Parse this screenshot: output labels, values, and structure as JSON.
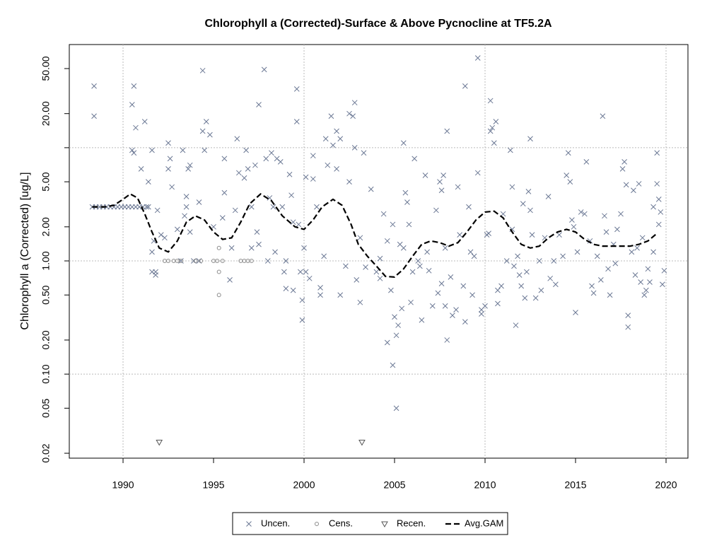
{
  "chart_data": {
    "type": "scatter",
    "title": "Chlorophyll a (Corrected)-Surface & Above Pycnocline at TF5.2A",
    "ylabel": "Chlorophyll a (Corrected) [ug/L]",
    "log_y": true,
    "xlim": [
      1987.03,
      2021.21
    ],
    "ylim": [
      0.0181,
      81.5
    ],
    "xticks": [
      1990,
      1995,
      2000,
      2005,
      2010,
      2015,
      2020
    ],
    "yticks": [
      {
        "value": 0.02,
        "label": "0.02"
      },
      {
        "value": 0.05,
        "label": "0.05"
      },
      {
        "value": 0.1,
        "label": "0.10"
      },
      {
        "value": 0.2,
        "label": "0.20"
      },
      {
        "value": 0.5,
        "label": "0.50"
      },
      {
        "value": 1,
        "label": "1.00"
      },
      {
        "value": 2,
        "label": "2.00"
      },
      {
        "value": 5,
        "label": "5.00"
      },
      {
        "value": 10,
        "label": null
      },
      {
        "value": 20,
        "label": "20.00"
      },
      {
        "value": 50,
        "label": "50.00"
      }
    ],
    "grid": true,
    "grid_x": [
      1990,
      2000,
      2010,
      2020
    ],
    "grid_y": [
      0.1,
      1,
      10
    ],
    "legend": "bottom",
    "series": [
      {
        "name": "Uncen.",
        "type": "scatter",
        "marker": "x",
        "color": "#6b7894",
        "x": [
          1988.4,
          1988.4,
          1988.3,
          1988.5,
          1988.7,
          1988.9,
          1989.1,
          1989.3,
          1989.5,
          1989.7,
          1989.9,
          1990.1,
          1990.3,
          1990.5,
          1990.7,
          1990.9,
          1991.1,
          1991.3,
          1991.4,
          1990.5,
          1990.6,
          1990.5,
          1990.6,
          1990.7,
          1991.2,
          1991.0,
          1991.4,
          1991.6,
          1991.6,
          1991.6,
          1991.8,
          1991.8,
          1991.7,
          1991.9,
          1992.1,
          1992.3,
          1992.5,
          1992.5,
          1992.6,
          1992.7,
          1993.0,
          1993.2,
          1993.4,
          1993.5,
          1993.5,
          1993.3,
          1993.6,
          1993.7,
          1993.7,
          1993.9,
          1994.2,
          1994.2,
          1994.4,
          1994.4,
          1994.5,
          1994.6,
          1994.8,
          1995.0,
          1995.5,
          1995.6,
          1995.6,
          1995.9,
          1996.0,
          1996.2,
          1996.3,
          1996.4,
          1996.7,
          1996.8,
          1996.9,
          1997.1,
          1997.1,
          1997.3,
          1997.4,
          1997.5,
          1997.5,
          1997.8,
          1997.9,
          1998.0,
          1998.1,
          1998.2,
          1998.3,
          1998.4,
          1998.5,
          1998.7,
          1998.8,
          1998.9,
          1999.0,
          1999.0,
          1999.2,
          1999.3,
          1999.4,
          1999.4,
          1999.6,
          1999.6,
          1999.7,
          1999.8,
          1999.9,
          1999.9,
          2000.0,
          2000.1,
          2000.1,
          2000.3,
          2000.5,
          2000.5,
          2000.7,
          2000.9,
          2000.9,
          2001.1,
          2001.2,
          2001.3,
          2001.5,
          2001.6,
          2001.8,
          2001.8,
          2002.0,
          2002.0,
          2002.3,
          2002.5,
          2002.5,
          2002.7,
          2002.8,
          2002.8,
          2002.9,
          2003.1,
          2003.1,
          2003.3,
          2003.4,
          2003.7,
          2004.0,
          2004.2,
          2004.2,
          2004.4,
          2004.6,
          2004.6,
          2004.8,
          2004.9,
          2004.9,
          2005.0,
          2005.1,
          2005.2,
          2005.1,
          2005.3,
          2005.4,
          2005.5,
          2005.5,
          2005.6,
          2005.7,
          2005.8,
          2005.9,
          2006.0,
          2006.1,
          2006.3,
          2006.4,
          2006.5,
          2006.7,
          2006.8,
          2006.9,
          2007.1,
          2007.3,
          2007.4,
          2007.5,
          2007.6,
          2007.6,
          2007.7,
          2007.8,
          2007.8,
          2007.9,
          2007.9,
          2008.1,
          2008.2,
          2008.4,
          2008.5,
          2008.6,
          2008.8,
          2008.9,
          2008.9,
          2009.1,
          2009.2,
          2009.3,
          2009.4,
          2009.6,
          2009.6,
          2009.8,
          2009.8,
          2010.0,
          2010.1,
          2010.2,
          2010.3,
          2010.3,
          2010.4,
          2010.5,
          2010.6,
          2010.7,
          2010.7,
          2010.9,
          2011.0,
          2011.2,
          2011.4,
          2011.5,
          2011.5,
          2011.6,
          2011.7,
          2011.8,
          2011.9,
          2012.0,
          2012.1,
          2012.2,
          2012.3,
          2012.4,
          2012.5,
          2012.5,
          2012.6,
          2012.8,
          2013.0,
          2013.1,
          2013.3,
          2013.5,
          2013.6,
          2013.8,
          2013.9,
          2014.1,
          2014.3,
          2014.5,
          2014.6,
          2014.7,
          2014.8,
          2014.9,
          2015.0,
          2015.1,
          2015.3,
          2015.5,
          2015.6,
          2015.8,
          2015.9,
          2016.0,
          2016.2,
          2016.4,
          2016.5,
          2016.6,
          2016.7,
          2016.8,
          2016.9,
          2017.1,
          2017.2,
          2017.3,
          2017.5,
          2017.6,
          2017.7,
          2017.8,
          2017.9,
          2017.9,
          2018.1,
          2018.2,
          2018.3,
          2018.4,
          2018.5,
          2018.6,
          2018.7,
          2018.8,
          2018.9,
          2019.0,
          2019.1,
          2019.3,
          2019.3,
          2019.5,
          2019.5,
          2019.6,
          2019.7,
          2019.8,
          2019.9,
          2019.6
        ],
        "values": [
          35,
          19,
          3,
          3,
          3,
          3,
          3,
          3,
          3,
          3,
          3,
          3,
          3,
          3,
          3,
          3,
          3,
          3,
          3,
          24,
          35,
          9.5,
          9,
          15,
          17,
          6.5,
          5,
          9.5,
          1.2,
          0.8,
          0.75,
          0.8,
          1.5,
          2.8,
          1.7,
          1.6,
          11,
          6.5,
          8,
          4.5,
          1.9,
          1.0,
          2.5,
          3.7,
          3,
          9.5,
          6.5,
          7,
          1.8,
          1.0,
          1.0,
          3.3,
          48,
          14,
          9.5,
          17,
          13,
          2,
          2.4,
          8,
          4,
          0.68,
          1.3,
          2.8,
          12,
          6,
          5.4,
          9.5,
          6.5,
          1.3,
          3,
          7,
          1.8,
          1.4,
          24,
          49,
          8,
          1.0,
          3.6,
          9,
          3,
          1.2,
          8,
          7.5,
          3,
          0.8,
          0.57,
          1.0,
          5.8,
          3.8,
          2.2,
          0.55,
          17,
          33,
          2.1,
          0.8,
          0.45,
          0.3,
          1.3,
          5.5,
          0.8,
          0.7,
          5.3,
          8.5,
          3,
          0.58,
          0.5,
          1.1,
          12,
          7,
          19,
          10.5,
          14,
          6.5,
          0.5,
          12,
          0.9,
          5,
          20,
          19,
          10,
          25,
          0.68,
          0.43,
          1.6,
          9,
          0.88,
          4.3,
          0.8,
          0.7,
          1.05,
          2.6,
          1.5,
          0.19,
          0.55,
          2.1,
          0.12,
          0.32,
          0.22,
          0.27,
          0.05,
          1.4,
          0.38,
          1.3,
          11,
          4,
          3.3,
          2.1,
          0.43,
          0.8,
          8,
          1.0,
          0.9,
          0.3,
          5.7,
          1.2,
          0.82,
          0.4,
          2.8,
          0.52,
          5,
          4.2,
          0.63,
          5.7,
          1.3,
          0.4,
          14,
          0.2,
          0.72,
          0.33,
          0.37,
          4.5,
          1.7,
          0.6,
          0.29,
          35,
          3,
          1.2,
          0.5,
          1.1,
          6,
          62,
          0.34,
          0.37,
          0.4,
          1.7,
          1.75,
          26,
          14,
          15,
          11,
          17,
          0.55,
          0.42,
          0.6,
          2.6,
          1.0,
          9.5,
          4.5,
          1.9,
          0.9,
          0.27,
          1.1,
          0.75,
          0.6,
          3.2,
          0.47,
          0.8,
          4.1,
          12,
          2.8,
          1.7,
          0.47,
          1.0,
          0.55,
          1.6,
          3.7,
          0.7,
          1.0,
          0.62,
          1.7,
          1.1,
          5.7,
          9,
          5,
          2.3,
          2,
          0.35,
          1.2,
          2.7,
          2.6,
          7.5,
          1.5,
          0.6,
          0.52,
          1.1,
          0.68,
          19,
          2.5,
          1.8,
          0.85,
          0.5,
          1.4,
          0.95,
          1.9,
          2.6,
          6.5,
          7.5,
          4.7,
          0.33,
          0.26,
          1.2,
          4.2,
          0.75,
          1.3,
          4.8,
          0.65,
          1.6,
          0.5,
          0.55,
          0.85,
          0.65,
          1.2,
          3.0,
          9,
          4.8,
          3.5,
          2.7,
          0.62,
          0.82,
          2.1
        ]
      },
      {
        "name": "Cens.",
        "type": "scatter",
        "marker": "circle",
        "color": "#8c8c8c",
        "x": [
          1992.3,
          1992.5,
          1992.8,
          1993.0,
          1993.2,
          1994.0,
          1994.3,
          1995.0,
          1995.2,
          1995.3,
          1995.3,
          1995.3,
          1995.5,
          1996.5,
          1996.7,
          1996.9,
          1997.1
        ],
        "values": [
          1,
          1,
          1,
          1,
          1,
          1,
          1,
          1,
          1,
          1.3,
          0.8,
          0.5,
          1,
          1,
          1,
          1,
          1
        ]
      },
      {
        "name": "Recen.",
        "type": "scatter",
        "marker": "triangle",
        "color": "#555555",
        "x": [
          1992.0,
          2003.2
        ],
        "values": [
          0.025,
          0.025
        ]
      },
      {
        "name": "Avg.GAM",
        "type": "line",
        "dashed": true,
        "color": "#000000",
        "x": [
          1988.3,
          1989,
          1989.5,
          1990,
          1990.4,
          1990.8,
          1991.2,
          1991.6,
          1992.0,
          1992.5,
          1993.0,
          1993.5,
          1994,
          1994.5,
          1995,
          1995.5,
          1996,
          1996.5,
          1997,
          1997.6,
          1998.2,
          1998.8,
          1999.5,
          2000,
          2000.5,
          2001,
          2001.6,
          2002.1,
          2002.6,
          2003.0,
          2003.5,
          2004.0,
          2004.5,
          2005.0,
          2005.5,
          2006.0,
          2006.5,
          2007.0,
          2007.5,
          2008,
          2008.5,
          2009,
          2009.5,
          2010.0,
          2010.5,
          2011,
          2011.5,
          2012,
          2012.5,
          2013,
          2013.5,
          2014,
          2014.5,
          2015,
          2015.5,
          2016,
          2016.5,
          2017,
          2017.5,
          2018,
          2018.5,
          2019,
          2019.5
        ],
        "values": [
          3.0,
          3.0,
          3.1,
          3.5,
          3.9,
          3.6,
          2.6,
          1.8,
          1.3,
          1.2,
          1.5,
          2.2,
          2.5,
          2.3,
          1.8,
          1.55,
          1.6,
          2.2,
          3.2,
          3.9,
          3.4,
          2.5,
          2.0,
          1.9,
          2.3,
          3.0,
          3.5,
          3.1,
          2.1,
          1.4,
          1.1,
          0.9,
          0.73,
          0.72,
          0.85,
          1.1,
          1.4,
          1.5,
          1.45,
          1.35,
          1.45,
          1.8,
          2.3,
          2.7,
          2.75,
          2.4,
          1.8,
          1.4,
          1.3,
          1.35,
          1.6,
          1.8,
          1.9,
          1.8,
          1.55,
          1.4,
          1.35,
          1.35,
          1.35,
          1.35,
          1.4,
          1.5,
          1.75
        ]
      }
    ]
  }
}
